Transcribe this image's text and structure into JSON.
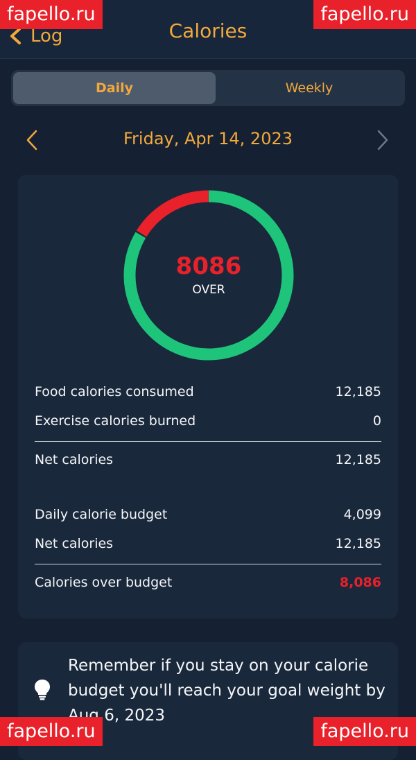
{
  "header": {
    "back_label": "Log",
    "title": "Calories"
  },
  "tabs": [
    {
      "label": "Daily",
      "selected": true
    },
    {
      "label": "Weekly",
      "selected": false
    }
  ],
  "date": "Friday, Apr 14, 2023",
  "ring": {
    "value": "8086",
    "status": "OVER",
    "over_fraction": 0.165,
    "colors": {
      "under": "#1dc47a",
      "over": "#e8212b"
    }
  },
  "summary": {
    "food_label": "Food calories consumed",
    "food_value": "12,185",
    "exercise_label": "Exercise calories burned",
    "exercise_value": "0",
    "net_label": "Net calories",
    "net_value": "12,185",
    "budget_label": "Daily calorie budget",
    "budget_value": "4,099",
    "net2_label": "Net calories",
    "net2_value": "12,185",
    "over_label": "Calories over budget",
    "over_value": "8,086"
  },
  "tip": {
    "text": "Remember if you stay on your calorie budget you'll reach your goal weight by Aug 6, 2023"
  },
  "watermarks": {
    "top_left": "fapello.ru",
    "top_right": "fapello.ru",
    "bottom_left": "fapello.ru",
    "bottom_right": "fapello.ru"
  },
  "colors": {
    "accent": "#f2a93b",
    "background": "#152133",
    "card": "#1a283b",
    "alert": "#e8212b"
  }
}
